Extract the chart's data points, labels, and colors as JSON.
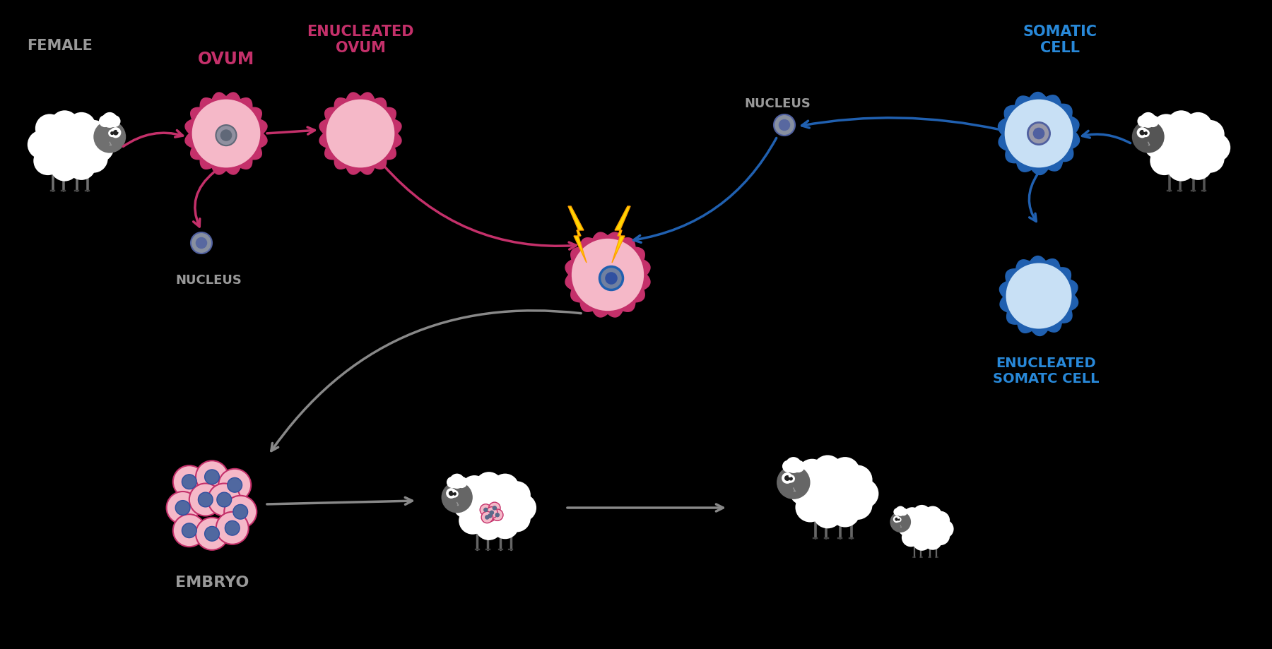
{
  "bg_color": "#000000",
  "pink_cell_fill": "#F5B8C8",
  "pink_cell_border": "#C4306A",
  "pink_dark": "#C4306A",
  "blue_cell_fill": "#C8E0F5",
  "blue_cell_border": "#2060B0",
  "blue_dark": "#2060B0",
  "gray_arrow": "#888888",
  "gray_label": "#AAAAAA",
  "nucleus_outer": "#7a8a9a",
  "nucleus_inner": "#506070",
  "nuc_blue_ring": "#4080C0",
  "yellow_bolt": "#FFD700",
  "sheep_body": "#FFFFFF",
  "sheep_head_dark": "#606060",
  "sheep_head_light": "#888888",
  "labels": {
    "female": "FEMALE",
    "ovum": "OVUM",
    "enucleated_ovum": "ENUCLEATED\nOVUM",
    "nucleus": "NUCLEUS",
    "somatic_cell": "SOMATIC\nCELL",
    "enucleated_somatic": "ENUCLEATED\nSOMATC CELL",
    "embryo": "EMBRYO"
  },
  "female_label_color": "#999999",
  "ovum_label_color": "#C4306A",
  "enucleated_ovum_label_color": "#C4306A",
  "nucleus_label_color": "#999999",
  "somatic_label_color": "#2888D8",
  "enucleated_somatic_label_color": "#2888D8",
  "embryo_label_color": "#999999"
}
